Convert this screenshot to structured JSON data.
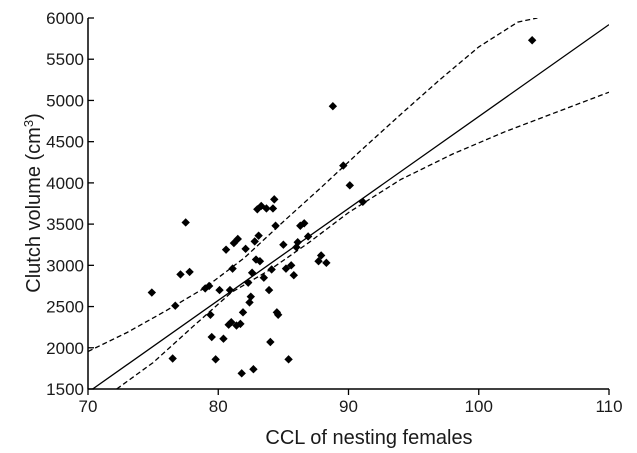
{
  "chart_data": {
    "type": "scatter",
    "title": "",
    "xlabel": "CCL of nesting females",
    "ylabel_main": "Clutch volume (cm",
    "ylabel_sup": "3",
    "ylabel_end": ")",
    "xlim": [
      70,
      110
    ],
    "ylim": [
      1500,
      6000
    ],
    "xticks": [
      70,
      80,
      90,
      100,
      110
    ],
    "yticks": [
      1500,
      2000,
      2500,
      3000,
      3500,
      4000,
      4500,
      5000,
      5500,
      6000
    ],
    "grid": false,
    "legend": "none",
    "marker_color": "#000000",
    "points": [
      [
        74.9,
        2670
      ],
      [
        76.5,
        1870
      ],
      [
        76.7,
        2510
      ],
      [
        77.1,
        2890
      ],
      [
        77.5,
        3520
      ],
      [
        77.8,
        2920
      ],
      [
        79.0,
        2720
      ],
      [
        79.3,
        2750
      ],
      [
        79.4,
        2400
      ],
      [
        79.5,
        2130
      ],
      [
        79.8,
        1860
      ],
      [
        80.1,
        2700
      ],
      [
        80.4,
        2110
      ],
      [
        80.6,
        3190
      ],
      [
        80.8,
        2280
      ],
      [
        80.9,
        2700
      ],
      [
        81.0,
        2310
      ],
      [
        81.1,
        2960
      ],
      [
        81.2,
        3270
      ],
      [
        81.4,
        2270
      ],
      [
        81.5,
        3320
      ],
      [
        81.7,
        2290
      ],
      [
        81.9,
        2430
      ],
      [
        81.8,
        1690
      ],
      [
        82.1,
        3200
      ],
      [
        82.3,
        2790
      ],
      [
        82.4,
        2550
      ],
      [
        82.5,
        2620
      ],
      [
        82.6,
        2910
      ],
      [
        82.7,
        1740
      ],
      [
        82.8,
        3290
      ],
      [
        82.9,
        3070
      ],
      [
        83.0,
        3680
      ],
      [
        83.1,
        3360
      ],
      [
        83.2,
        3050
      ],
      [
        83.3,
        3720
      ],
      [
        83.5,
        2850
      ],
      [
        83.7,
        3690
      ],
      [
        83.9,
        2700
      ],
      [
        84.0,
        2070
      ],
      [
        84.1,
        2950
      ],
      [
        84.2,
        3690
      ],
      [
        84.3,
        3800
      ],
      [
        84.4,
        3480
      ],
      [
        84.5,
        2430
      ],
      [
        84.6,
        2400
      ],
      [
        85.0,
        3250
      ],
      [
        85.2,
        2960
      ],
      [
        85.4,
        1860
      ],
      [
        85.6,
        3000
      ],
      [
        85.8,
        2880
      ],
      [
        86.0,
        3220
      ],
      [
        86.1,
        3280
      ],
      [
        86.3,
        3480
      ],
      [
        86.6,
        3510
      ],
      [
        86.9,
        3350
      ],
      [
        87.7,
        3050
      ],
      [
        87.9,
        3120
      ],
      [
        88.3,
        3030
      ],
      [
        88.8,
        4930
      ],
      [
        89.6,
        4210
      ],
      [
        90.1,
        3970
      ],
      [
        91.1,
        3770
      ],
      [
        104.1,
        5730
      ]
    ],
    "fit_line": {
      "x": [
        70,
        110
      ],
      "y": [
        1460,
        5920
      ]
    },
    "ci_upper": {
      "x": [
        70,
        73,
        76,
        79,
        82,
        85,
        88,
        91,
        94,
        97,
        100,
        103,
        104.5
      ],
      "y": [
        1955,
        2185,
        2450,
        2730,
        3090,
        3530,
        3960,
        4400,
        4830,
        5250,
        5650,
        5950,
        6000
      ]
    },
    "ci_lower": {
      "x": [
        72.2,
        75,
        78,
        81,
        84,
        87,
        90,
        94,
        98,
        102,
        106,
        110
      ],
      "y": [
        1500,
        1820,
        2250,
        2670,
        2950,
        3280,
        3640,
        4040,
        4350,
        4620,
        4860,
        5100
      ]
    }
  }
}
